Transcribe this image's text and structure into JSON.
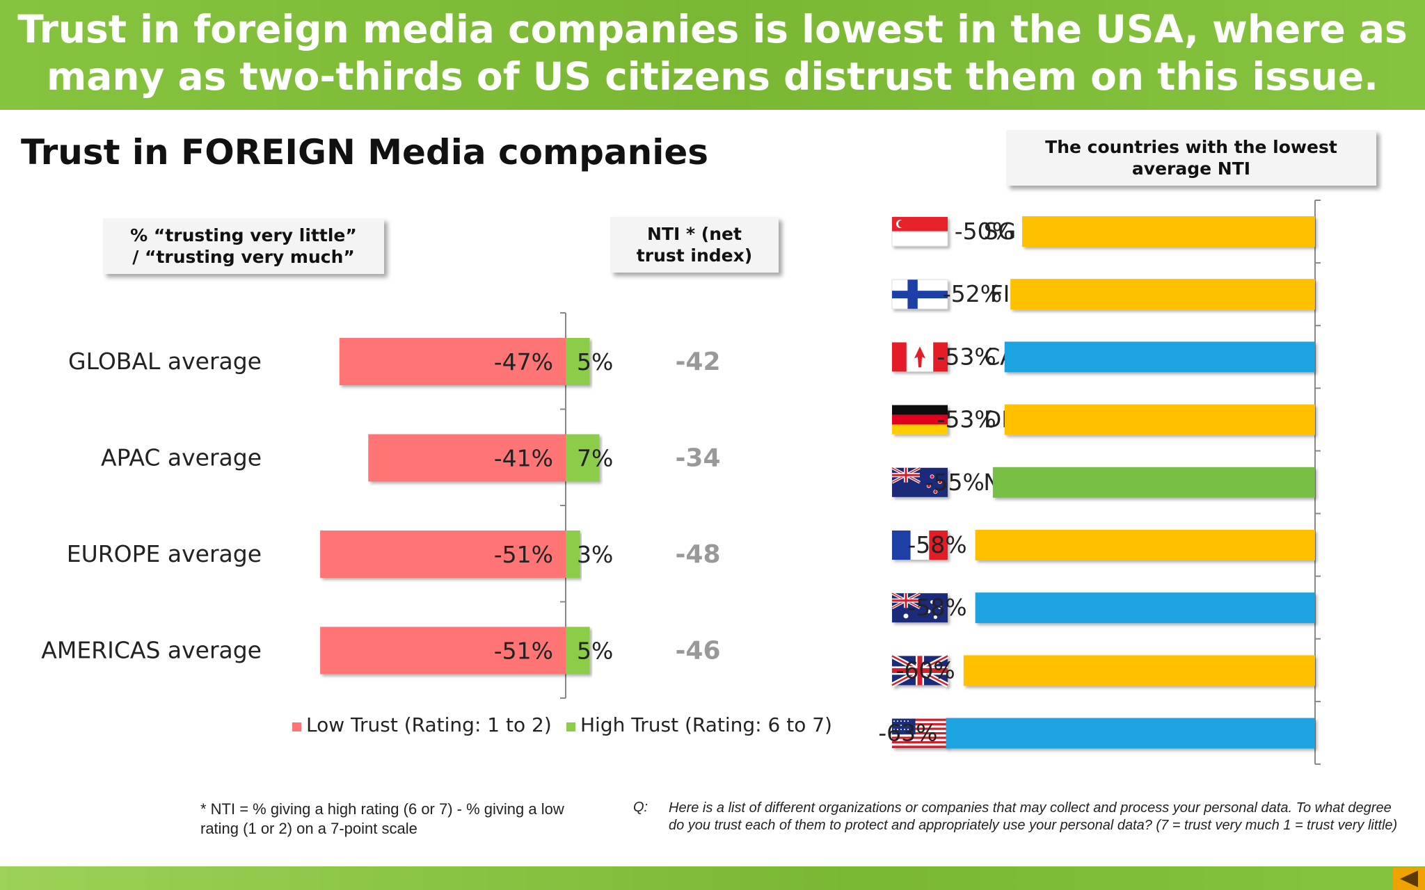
{
  "headline": "Trust in foreign media companies is lowest in the USA, where as many as two-thirds of US citizens distrust them on this issue.",
  "section_title": "Trust in FOREIGN Media companies",
  "left_box_label": "% “trusting very  little” / “trusting very much”",
  "nti_box_label": "NTI * (net trust index)",
  "right_box_label": "The countries with the lowest average NTI",
  "footnote": "* NTI = % giving a high rating (6 or 7) - % giving a low rating (1 or 2) on a 7-point scale",
  "question_label": "Q:",
  "question_text": "Here is a list of different organizations or companies that may collect and process your personal data.  To what degree do you trust each of them to protect and appropriately use your personal data? (7 = trust very much 1 = trust very little)",
  "colors": {
    "banner": "#7ab733",
    "low_trust": "#ff7575",
    "high_trust": "#8bcd4a",
    "yellow": "#ffc000",
    "blue": "#1aa3e0",
    "green": "#78c044",
    "nti_text": "#999999"
  },
  "chart_data": [
    {
      "type": "bar",
      "orientation": "horizontal",
      "stacked": "diverging",
      "categories": [
        "GLOBAL average",
        "APAC average",
        "EUROPE average",
        "AMERICAS average"
      ],
      "series": [
        {
          "name": "Low Trust (Rating: 1 to 2)",
          "values": [
            -47,
            -41,
            -51,
            -51
          ],
          "labels": [
            "-47%",
            "-41%",
            "-51%",
            "-51%"
          ]
        },
        {
          "name": "High Trust (Rating: 6 to 7)",
          "values": [
            5,
            7,
            3,
            5
          ],
          "labels": [
            "5%",
            "7%",
            "3%",
            "5%"
          ]
        }
      ],
      "nti_values": [
        "-42",
        "-34",
        "-48",
        "-46"
      ],
      "legend_position": "bottom"
    },
    {
      "type": "bar",
      "orientation": "horizontal",
      "categories": [
        "SG",
        "FI",
        "CA",
        "DE",
        "NZ",
        "FR",
        "AU",
        "UK",
        "US"
      ],
      "flags": [
        "flag-sg-icon",
        "flag-fi-icon",
        "flag-ca-icon",
        "flag-de-icon",
        "flag-nz-icon",
        "flag-fr-icon",
        "flag-au-icon",
        "flag-uk-icon",
        "flag-us-icon"
      ],
      "values": [
        -50,
        -52,
        -53,
        -53,
        -55,
        -58,
        -58,
        -60,
        -63
      ],
      "labels": [
        "-50%",
        "-52%",
        "-53%",
        "-53%",
        "-55%",
        "-58%",
        "-58%",
        "-60%",
        "-63%"
      ],
      "bar_colors": [
        "#ffc000",
        "#ffc000",
        "#1aa3e0",
        "#ffc000",
        "#78c044",
        "#ffc000",
        "#1aa3e0",
        "#ffc000",
        "#1aa3e0"
      ]
    }
  ]
}
